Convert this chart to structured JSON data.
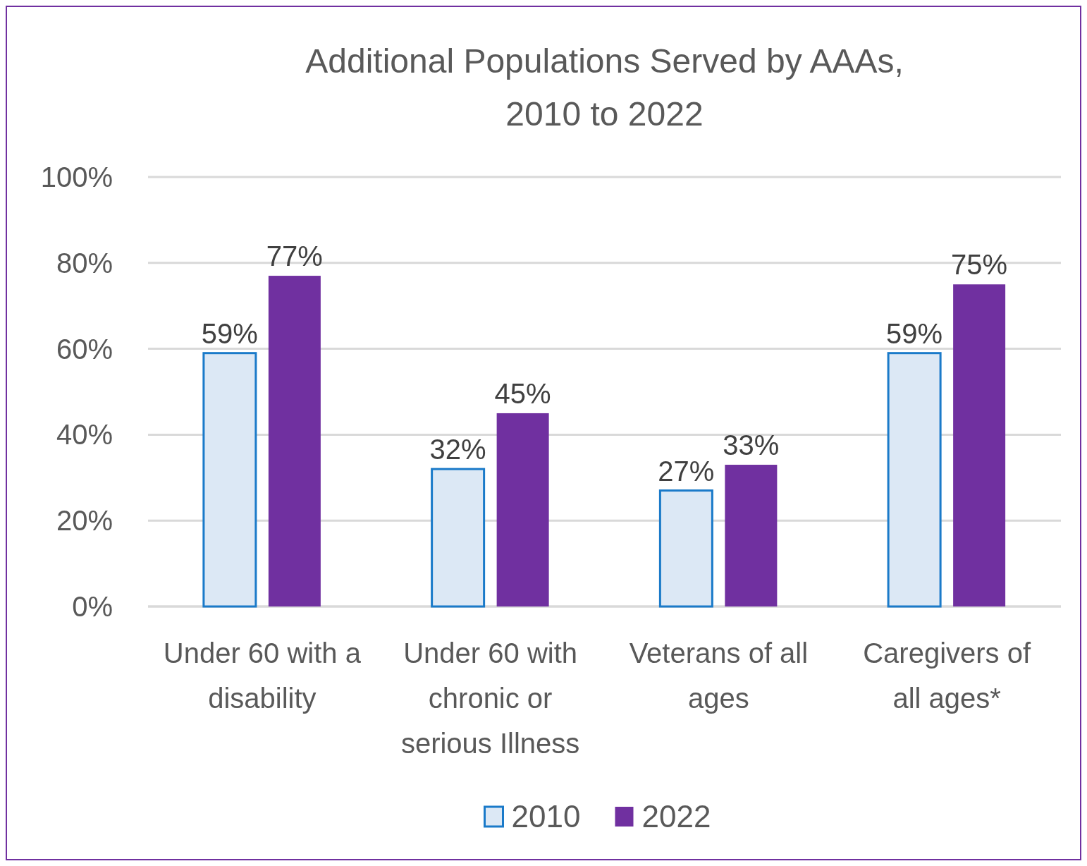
{
  "chart_data": {
    "type": "bar",
    "title": "Additional Populations Served by AAAs,\n2010 to 2022",
    "categories": [
      "Under 60 with a disability",
      "Under 60 with chronic or serious Illness",
      "Veterans of all ages",
      "Caregivers of all ages*"
    ],
    "series": [
      {
        "name": "2010",
        "color": "#dce8f5",
        "values": [
          59,
          32,
          27,
          59
        ],
        "value_labels": [
          "59%",
          "32%",
          "27%",
          "59%"
        ]
      },
      {
        "name": "2022",
        "color": "#7030a0",
        "values": [
          77,
          45,
          33,
          75
        ],
        "value_labels": [
          "77%",
          "45%",
          "33%",
          "75%"
        ]
      }
    ],
    "ylim": [
      0,
      100
    ],
    "yticks": [
      {
        "value": 0,
        "label": "0%"
      },
      {
        "value": 20,
        "label": "20%"
      },
      {
        "value": 40,
        "label": "40%"
      },
      {
        "value": 60,
        "label": "60%"
      },
      {
        "value": 80,
        "label": "80%"
      },
      {
        "value": 100,
        "label": "100%"
      }
    ],
    "grid": "y",
    "legend": "bottom"
  }
}
